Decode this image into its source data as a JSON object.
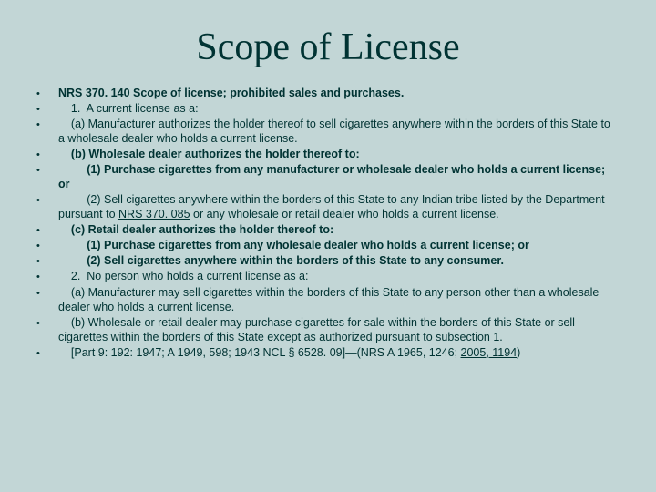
{
  "title": "Scope of License",
  "bullets": [
    {
      "lead": "NRS 370. 140",
      "leadBold": true,
      "rest": "  Scope of license; prohibited sales and purchases.",
      "restBold": true,
      "indent": 0
    },
    {
      "lead": "    1.  A current license as a:",
      "leadBold": false,
      "rest": "",
      "restBold": false,
      "indent": 0
    },
    {
      "lead": "    (a) Manufacturer authorizes the holder thereof to sell cigarettes anywhere within the borders of this State to a wholesale dealer who holds a current license.",
      "leadBold": false,
      "rest": "",
      "restBold": false,
      "indent": 0
    },
    {
      "lead": "    (b) Wholesale dealer authorizes the holder thereof to:",
      "leadBold": true,
      "rest": "",
      "restBold": false,
      "indent": 0
    },
    {
      "lead": "         (1) Purchase cigarettes from any manufacturer or wholesale dealer who holds a current license; or",
      "leadBold": true,
      "rest": "",
      "restBold": false,
      "indent": 0
    },
    {
      "lead": "         (2) Sell cigarettes anywhere within the borders of this State to any Indian tribe listed by the Department pursuant to ",
      "leadBold": false,
      "rest": "",
      "restBold": false,
      "indent": 0,
      "link": "NRS 370. 085",
      "tail": " or any wholesale or retail dealer who holds a current license."
    },
    {
      "lead": "    (c) Retail dealer authorizes the holder thereof to:",
      "leadBold": true,
      "rest": "",
      "restBold": false,
      "indent": 0
    },
    {
      "lead": "         (1) Purchase cigarettes from any wholesale dealer who holds a current license; or",
      "leadBold": true,
      "rest": "",
      "restBold": false,
      "indent": 0
    },
    {
      "lead": "         (2) Sell cigarettes anywhere within the borders of this State to any consumer.",
      "leadBold": true,
      "rest": "",
      "restBold": false,
      "indent": 0
    },
    {
      "lead": "    2.  No person who holds a current license as a:",
      "leadBold": false,
      "rest": "",
      "restBold": false,
      "indent": 0
    },
    {
      "lead": "    (a) Manufacturer may sell cigarettes within the borders of this State to any person other than a wholesale dealer who holds a current license.",
      "leadBold": false,
      "rest": "",
      "restBold": false,
      "indent": 0
    },
    {
      "lead": "    (b) Wholesale or retail dealer may purchase cigarettes for sale within the borders of this State or sell cigarettes within the borders of this State except as authorized pursuant to subsection 1.",
      "leadBold": false,
      "rest": "",
      "restBold": false,
      "indent": 0
    },
    {
      "lead": "    [Part 9: 192: 1947; A 1949, 598; 1943 NCL § 6528. 09]—(NRS A 1965, 1246; ",
      "leadBold": false,
      "rest": "",
      "restBold": false,
      "indent": 0,
      "link2": "2005, 1194",
      "tail2": ")"
    }
  ]
}
